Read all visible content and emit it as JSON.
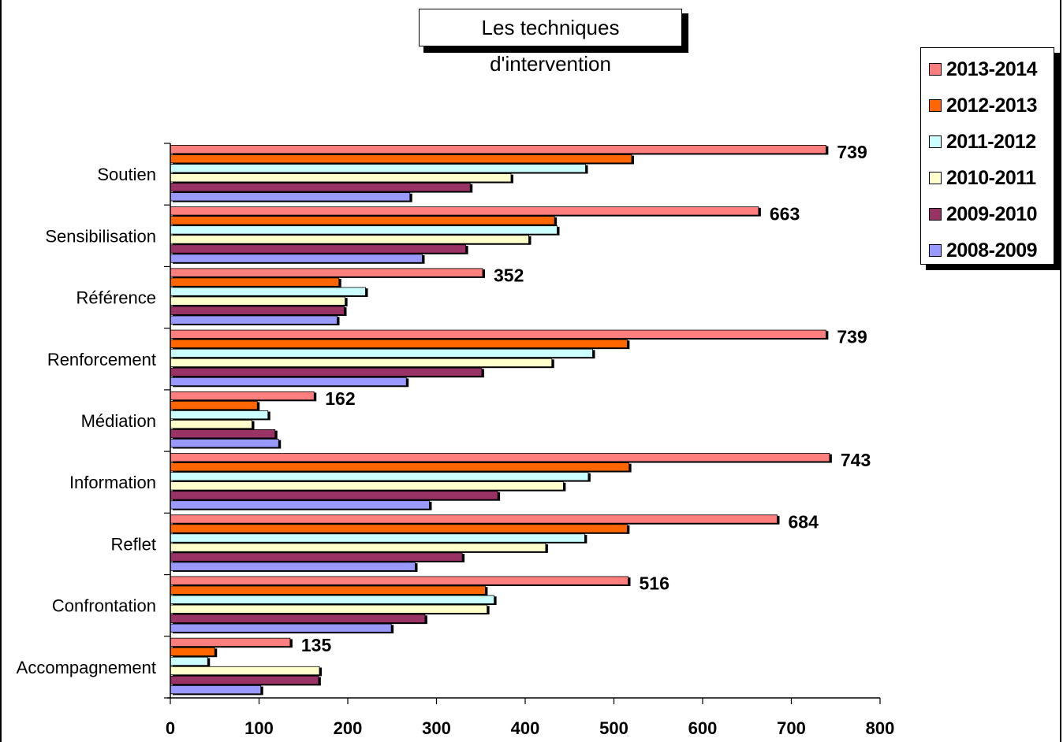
{
  "chart_data": {
    "type": "bar",
    "orientation": "horizontal",
    "title": "Les techniques d'intervention",
    "categories": [
      "Soutien",
      "Sensibilisation",
      "Référence",
      "Renforcement",
      "Médiation",
      "Information",
      "Reflet",
      "Confrontation",
      "Accompagnement"
    ],
    "series": [
      {
        "name": "2013-2014",
        "color": "#ff7f7f",
        "values": [
          739,
          663,
          352,
          739,
          162,
          743,
          684,
          516,
          135
        ]
      },
      {
        "name": "2012-2013",
        "color": "#ff6600",
        "values": [
          520,
          433,
          190,
          515,
          98,
          517,
          515,
          355,
          50
        ]
      },
      {
        "name": "2011-2012",
        "color": "#ccffff",
        "values": [
          468,
          436,
          220,
          476,
          110,
          471,
          467,
          365,
          42
        ]
      },
      {
        "name": "2010-2011",
        "color": "#ffffcc",
        "values": [
          384,
          404,
          197,
          430,
          92,
          443,
          423,
          357,
          168
        ]
      },
      {
        "name": "2009-2010",
        "color": "#993366",
        "values": [
          338,
          333,
          196,
          351,
          118,
          369,
          329,
          287,
          167
        ]
      },
      {
        "name": "2008-2009",
        "color": "#9999ff",
        "values": [
          270,
          284,
          188,
          266,
          122,
          292,
          276,
          249,
          102
        ]
      }
    ],
    "data_labels": [
      "739",
      "663",
      "352",
      "739",
      "162",
      "743",
      "684",
      "516",
      "135"
    ],
    "xlim": [
      0,
      800
    ],
    "xticks": [
      "0",
      "100",
      "200",
      "300",
      "400",
      "500",
      "600",
      "700",
      "800"
    ],
    "legend_position": "top-right",
    "grid": false
  }
}
